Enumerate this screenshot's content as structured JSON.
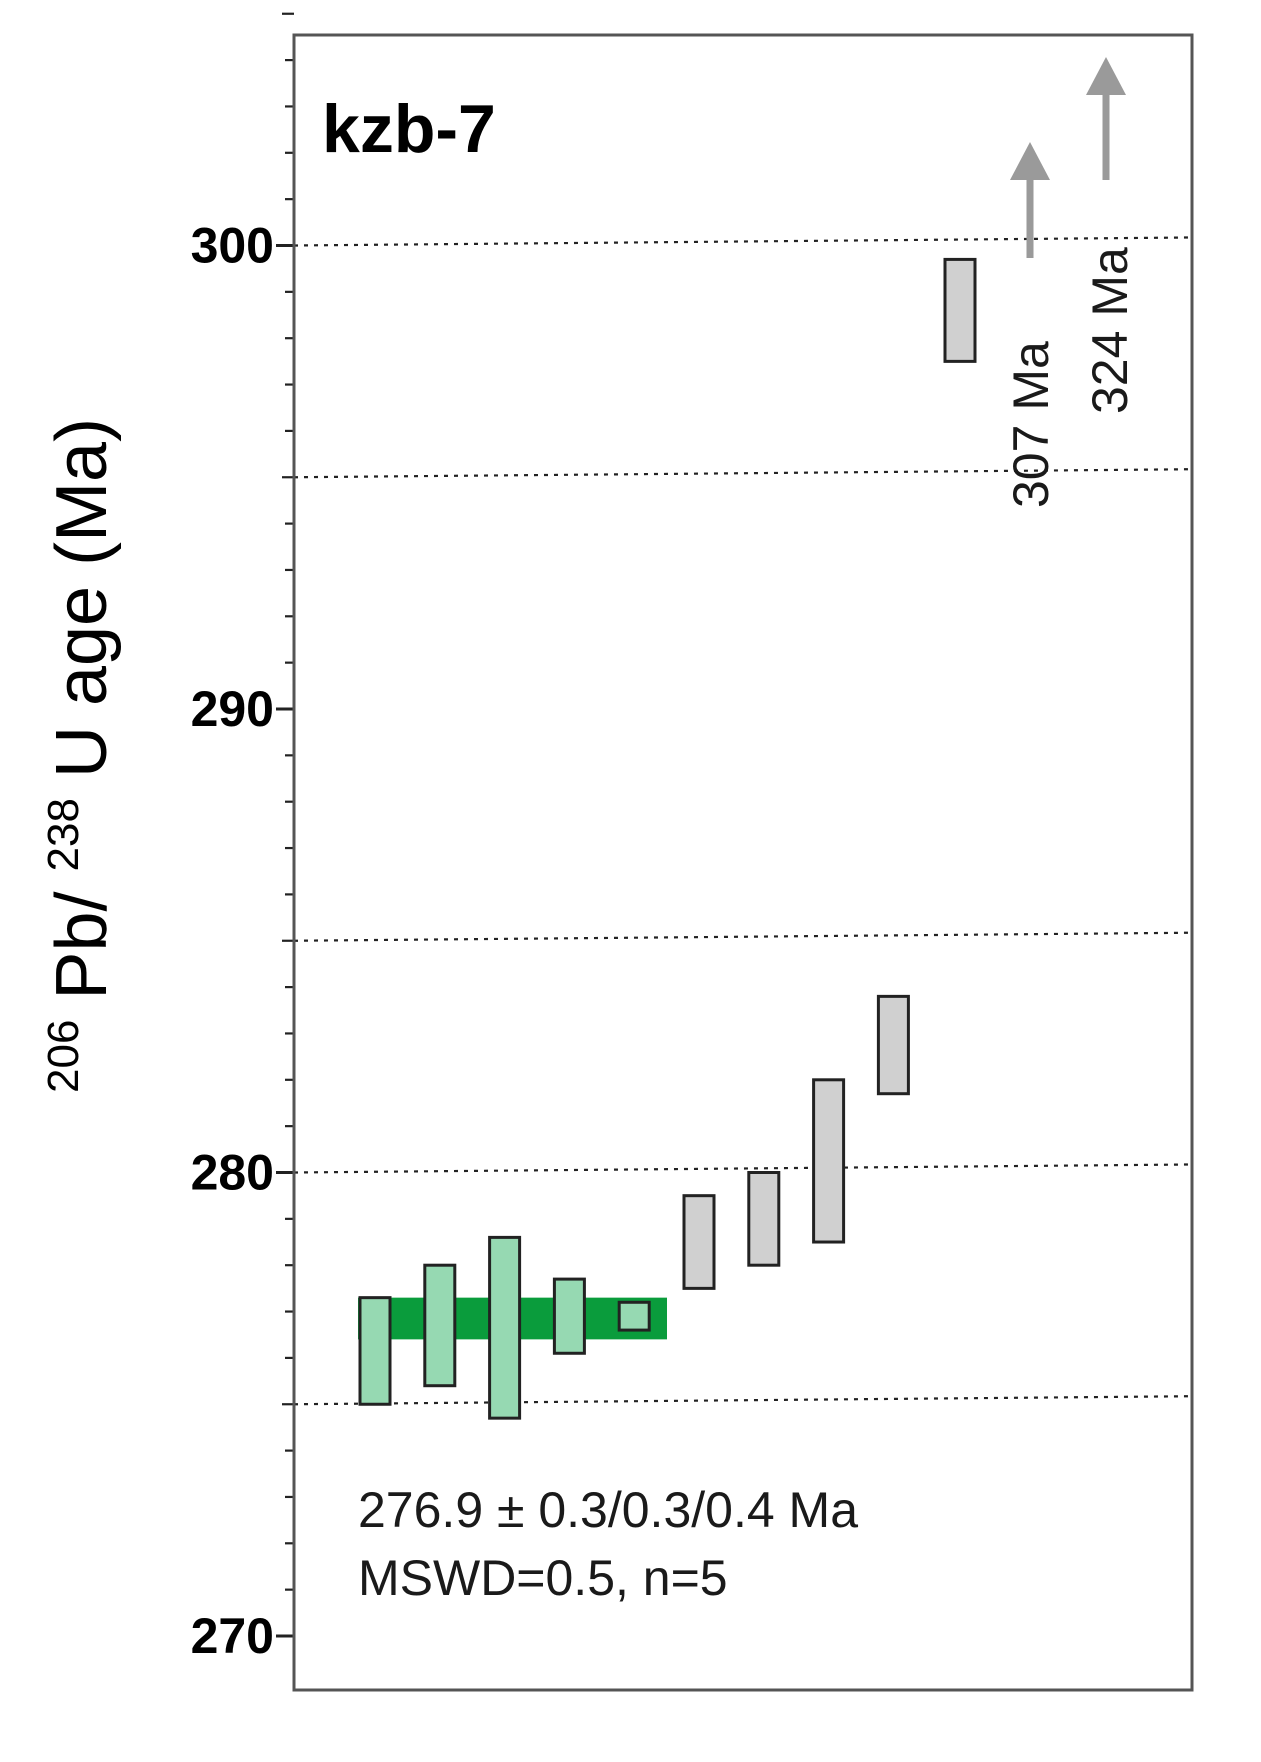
{
  "chart_data": {
    "type": "box",
    "title": "kzb-7",
    "ylabel": {
      "sup1": "206",
      "part1": "Pb/",
      "sup2": "238",
      "part2": "U age (Ma)"
    },
    "ylim": [
      269.5,
      305.5
    ],
    "y_major_ticks": [
      270,
      280,
      290,
      300
    ],
    "y_minor_step": 1,
    "y_gridlines": [
      275,
      280,
      285,
      295,
      300
    ],
    "grid": "dotted horizontal",
    "weighted_mean": {
      "value": 276.9,
      "low": 276.4,
      "high": 277.3,
      "color": "#0a9c3c",
      "stat_line1": "276.9 ± 0.3/0.3/0.4 Ma",
      "stat_line2": "MSWD=0.5, n=5"
    },
    "analyses": [
      {
        "index": 1,
        "low": 275.0,
        "high": 277.3,
        "used": true
      },
      {
        "index": 2,
        "low": 275.4,
        "high": 278.0,
        "used": true
      },
      {
        "index": 3,
        "low": 274.7,
        "high": 278.6,
        "used": true
      },
      {
        "index": 4,
        "low": 276.1,
        "high": 277.7,
        "used": true
      },
      {
        "index": 5,
        "low": 276.6,
        "high": 277.2,
        "used": true
      },
      {
        "index": 6,
        "low": 277.5,
        "high": 279.5,
        "used": false
      },
      {
        "index": 7,
        "low": 278.0,
        "high": 280.0,
        "used": false
      },
      {
        "index": 8,
        "low": 278.5,
        "high": 282.0,
        "used": false
      },
      {
        "index": 9,
        "low": 281.7,
        "high": 283.8,
        "used": false
      },
      {
        "index": 10,
        "low": 297.5,
        "high": 299.7,
        "used": false
      }
    ],
    "offscale": [
      {
        "label": "307 Ma"
      },
      {
        "label": "324 Ma"
      }
    ],
    "colors": {
      "used_fill": "#96d9b2",
      "excluded_fill": "#d0d0d0",
      "arrow": "#9a9a9a",
      "band": "#0a9c3c"
    }
  }
}
